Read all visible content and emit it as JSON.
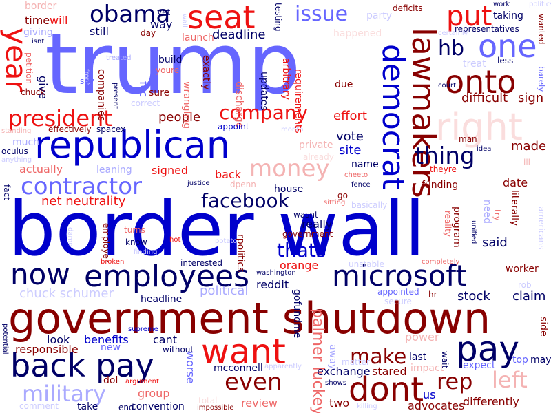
{
  "palette": {
    "navy": "#000066",
    "blue": "#0000cc",
    "periwinkle": "#6666ff",
    "light_blue": "#aaaaff",
    "pale_blue": "#ccccff",
    "maroon": "#880000",
    "red": "#ee1111",
    "salmon": "#ee6666",
    "pink": "#f4b3b3",
    "pale_pink": "#fadddd"
  },
  "words": [
    {
      "text": "border wall",
      "color": "#0000cc"
    },
    {
      "text": "trump",
      "color": "#6666ff"
    },
    {
      "text": "government shutdown",
      "color": "#880000"
    },
    {
      "text": "republican",
      "color": "#0000cc"
    },
    {
      "text": "back pay",
      "color": "#000066"
    },
    {
      "text": "employees",
      "color": "#000066"
    },
    {
      "text": "microsoft",
      "color": "#000066"
    },
    {
      "text": "now",
      "color": "#000066"
    },
    {
      "text": "want",
      "color": "#ee1111"
    },
    {
      "text": "dont",
      "color": "#880000"
    },
    {
      "text": "pay",
      "color": "#000066"
    },
    {
      "text": "seat",
      "color": "#ee1111"
    },
    {
      "text": "democrat",
      "color": "#0000cc"
    },
    {
      "text": "lawmakers",
      "color": "#880000"
    },
    {
      "text": "right",
      "color": "#fadddd"
    },
    {
      "text": "onto",
      "color": "#880000"
    },
    {
      "text": "one",
      "color": "#6666ff"
    },
    {
      "text": "put",
      "color": "#ee1111"
    },
    {
      "text": "hb",
      "color": "#000066"
    },
    {
      "text": "obama",
      "color": "#000066"
    },
    {
      "text": "issue",
      "color": "#6666ff"
    },
    {
      "text": "year",
      "color": "#ee1111"
    },
    {
      "text": "president",
      "color": "#ee1111"
    },
    {
      "text": "company",
      "color": "#ee1111"
    },
    {
      "text": "contractor",
      "color": "#6666ff"
    },
    {
      "text": "money",
      "color": "#f4b3b3"
    },
    {
      "text": "facebook",
      "color": "#000066"
    },
    {
      "text": "thing",
      "color": "#000066"
    },
    {
      "text": "thats",
      "color": "#0000cc"
    },
    {
      "text": "even",
      "color": "#880000"
    },
    {
      "text": "make",
      "color": "#880000"
    },
    {
      "text": "rep",
      "color": "#880000"
    },
    {
      "text": "left",
      "color": "#f4b3b3"
    },
    {
      "text": "military",
      "color": "#aaaaff"
    },
    {
      "text": "net neutrality",
      "color": "#ee1111"
    },
    {
      "text": "palmer luckey",
      "color": "#ee6666"
    },
    {
      "text": "chuck schumer",
      "color": "#ccccff"
    },
    {
      "text": "political",
      "color": "#aaaaff"
    },
    {
      "text": "stock",
      "color": "#000066"
    },
    {
      "text": "claim",
      "color": "#000066"
    },
    {
      "text": "deadline",
      "color": "#000066"
    },
    {
      "text": "effort",
      "color": "#ee1111"
    },
    {
      "text": "difficult",
      "color": "#880000"
    },
    {
      "text": "sign",
      "color": "#880000"
    },
    {
      "text": "made",
      "color": "#880000"
    },
    {
      "text": "date",
      "color": "#880000"
    },
    {
      "text": "said",
      "color": "#000066"
    },
    {
      "text": "vote",
      "color": "#000066"
    },
    {
      "text": "site",
      "color": "#0000cc"
    },
    {
      "text": "name",
      "color": "#000066"
    },
    {
      "text": "people",
      "color": "#880000"
    },
    {
      "text": "signed",
      "color": "#ee1111"
    },
    {
      "text": "back",
      "color": "#ee1111"
    },
    {
      "text": "actually",
      "color": "#ee6666"
    },
    {
      "text": "leaning",
      "color": "#aaaaff"
    },
    {
      "text": "really",
      "color": "#000066"
    },
    {
      "text": "orange",
      "color": "#ee1111"
    },
    {
      "text": "reddit",
      "color": "#000066"
    },
    {
      "text": "benefits",
      "color": "#0000cc"
    },
    {
      "text": "cant",
      "color": "#000066"
    },
    {
      "text": "look",
      "color": "#000066"
    },
    {
      "text": "responsible",
      "color": "#880000"
    },
    {
      "text": "headline",
      "color": "#000066"
    },
    {
      "text": "mcconnell",
      "color": "#000066"
    },
    {
      "text": "exchange",
      "color": "#000066"
    },
    {
      "text": "stared",
      "color": "#880000"
    },
    {
      "text": "review",
      "color": "#ee6666"
    },
    {
      "text": "group",
      "color": "#ee6666"
    },
    {
      "text": "worse",
      "color": "#6666ff"
    },
    {
      "text": "convention",
      "color": "#000066"
    },
    {
      "text": "take",
      "color": "#000066"
    },
    {
      "text": "two",
      "color": "#880000"
    },
    {
      "text": "advocates",
      "color": "#880000"
    },
    {
      "text": "differently",
      "color": "#880000"
    },
    {
      "text": "power",
      "color": "#f4b3b3"
    },
    {
      "text": "last",
      "color": "#000066"
    },
    {
      "text": "us",
      "color": "#0000cc"
    },
    {
      "text": "time",
      "color": "#880000"
    },
    {
      "text": "will",
      "color": "#ee1111"
    },
    {
      "text": "still",
      "color": "#000066"
    },
    {
      "text": "way",
      "color": "#000066"
    },
    {
      "text": "giving",
      "color": "#aaaaff"
    },
    {
      "text": "give",
      "color": "#000066"
    },
    {
      "text": "chuck",
      "color": "#880000"
    },
    {
      "text": "oculus",
      "color": "#000066"
    },
    {
      "text": "fact",
      "color": "#000066"
    },
    {
      "text": "much",
      "color": "#aaaaff"
    },
    {
      "text": "effectively",
      "color": "#880000"
    },
    {
      "text": "spacex",
      "color": "#000066"
    },
    {
      "text": "build",
      "color": "#000066"
    },
    {
      "text": "youre",
      "color": "#ee6666"
    },
    {
      "text": "sure",
      "color": "#880000"
    },
    {
      "text": "fcc",
      "color": "#6666ff"
    },
    {
      "text": "companies",
      "color": "#880000"
    },
    {
      "text": "wrangling",
      "color": "#ee6666"
    },
    {
      "text": "discharge",
      "color": "#ee6666"
    },
    {
      "text": "exactly",
      "color": "#880000"
    },
    {
      "text": "updates",
      "color": "#000066"
    },
    {
      "text": "arbitrary",
      "color": "#ee1111"
    },
    {
      "text": "requirements",
      "color": "#ee1111"
    },
    {
      "text": "due",
      "color": "#880000"
    },
    {
      "text": "taking",
      "color": "#000066"
    },
    {
      "text": "representatives",
      "color": "#000066"
    },
    {
      "text": "less",
      "color": "#000066"
    },
    {
      "text": "wanted",
      "color": "#880000"
    },
    {
      "text": "testing",
      "color": "#000066"
    },
    {
      "text": "deficits",
      "color": "#880000"
    },
    {
      "text": "party",
      "color": "#ccccff"
    },
    {
      "text": "happened",
      "color": "#fadddd"
    },
    {
      "text": "launch",
      "color": "#ee6666"
    },
    {
      "text": "day",
      "color": "#880000"
    },
    {
      "text": "correct",
      "color": "#ccccff"
    },
    {
      "text": "appoint",
      "color": "#0000cc"
    },
    {
      "text": "private",
      "color": "#f4b3b3"
    },
    {
      "text": "already",
      "color": "#fadddd"
    },
    {
      "text": "funding",
      "color": "#880000"
    },
    {
      "text": "theyre",
      "color": "#ee1111"
    },
    {
      "text": "man",
      "color": "#880000"
    },
    {
      "text": "need",
      "color": "#aaaaff"
    },
    {
      "text": "literally",
      "color": "#880000"
    },
    {
      "text": "program",
      "color": "#880000"
    },
    {
      "text": "reality",
      "color": "#ee6666"
    },
    {
      "text": "try",
      "color": "#ee6666"
    },
    {
      "text": "worker",
      "color": "#880000"
    },
    {
      "text": "house",
      "color": "#000066"
    },
    {
      "text": "basically",
      "color": "#ccccff"
    },
    {
      "text": "go",
      "color": "#880000"
    },
    {
      "text": "wasnt",
      "color": "#000066"
    },
    {
      "text": "government",
      "color": "#880000"
    },
    {
      "text": "rpolitics",
      "color": "#880000"
    },
    {
      "text": "know",
      "color": "#000066"
    },
    {
      "text": "turns",
      "color": "#ee6666"
    },
    {
      "text": "employer",
      "color": "#880000"
    },
    {
      "text": "interested",
      "color": "#000066"
    },
    {
      "text": "washington",
      "color": "#000066"
    },
    {
      "text": "unstable",
      "color": "#ccccff"
    },
    {
      "text": "appointed",
      "color": "#6666ff"
    },
    {
      "text": "secure",
      "color": "#ccccff"
    },
    {
      "text": "hr",
      "color": "#880000"
    },
    {
      "text": "gofundme",
      "color": "#000066"
    },
    {
      "text": "away",
      "color": "#aaaaff"
    },
    {
      "text": "matter",
      "color": "#ccccff"
    },
    {
      "text": "impact",
      "color": "#f4b3b3"
    },
    {
      "text": "wait",
      "color": "#000066"
    },
    {
      "text": "expect",
      "color": "#6666ff"
    },
    {
      "text": "top",
      "color": "#6666ff"
    },
    {
      "text": "may",
      "color": "#000066"
    },
    {
      "text": "side",
      "color": "#880000"
    },
    {
      "text": "new",
      "color": "#6666ff"
    },
    {
      "text": "without",
      "color": "#000066"
    },
    {
      "text": "dol",
      "color": "#880000"
    },
    {
      "text": "argument",
      "color": "#ee1111"
    },
    {
      "text": "comment",
      "color": "#ccccff"
    },
    {
      "text": "end",
      "color": "#000066"
    },
    {
      "text": "total",
      "color": "#fadddd"
    },
    {
      "text": "impossible",
      "color": "#880000"
    },
    {
      "text": "shows",
      "color": "#000066"
    },
    {
      "text": "killing",
      "color": "#ccccff"
    },
    {
      "text": "potential",
      "color": "#000066"
    },
    {
      "text": "supreme",
      "color": "#0000cc"
    },
    {
      "text": "border",
      "color": "#f4b3b3"
    },
    {
      "text": "isnt",
      "color": "#000066"
    },
    {
      "text": "petition",
      "color": "#ee6666"
    },
    {
      "text": "yet",
      "color": "#000066"
    },
    {
      "text": "treated",
      "color": "#aaaaff"
    },
    {
      "text": "front",
      "color": "#ccccff"
    },
    {
      "text": "present",
      "color": "#000066"
    },
    {
      "text": "say",
      "color": "#6666ff"
    },
    {
      "text": "standing",
      "color": "#f4b3b3"
    },
    {
      "text": "anything",
      "color": "#ccccff"
    },
    {
      "text": "treat",
      "color": "#ccccff"
    },
    {
      "text": "court",
      "color": "#000066"
    },
    {
      "text": "barely",
      "color": "#6666ff"
    },
    {
      "text": "americans",
      "color": "#ccccff"
    },
    {
      "text": "cheeto",
      "color": "#ee6666"
    },
    {
      "text": "fence",
      "color": "#000066"
    },
    {
      "text": "idea",
      "color": "#000066"
    },
    {
      "text": "ill",
      "color": "#f4b3b3"
    },
    {
      "text": "sitting",
      "color": "#ee6666"
    },
    {
      "text": "justice",
      "color": "#000066"
    },
    {
      "text": "dpenn",
      "color": "#f4b3b3"
    },
    {
      "text": "hot",
      "color": "#ee1111"
    },
    {
      "text": "damn",
      "color": "#ccccff"
    },
    {
      "text": "broken",
      "color": "#ee1111"
    },
    {
      "text": "potato",
      "color": "#ccccff"
    },
    {
      "text": "finding",
      "color": "#ccccff"
    },
    {
      "text": "unified",
      "color": "#000066"
    },
    {
      "text": "completely",
      "color": "#ee6666"
    },
    {
      "text": "rob",
      "color": "#ccccff"
    },
    {
      "text": "apparently",
      "color": "#ccccff"
    },
    {
      "text": "certainly",
      "color": "#ccccff"
    },
    {
      "text": "work",
      "color": "#000066"
    },
    {
      "text": "politics",
      "color": "#ccccff"
    },
    {
      "text": "month",
      "color": "#ccccff"
    },
    {
      "text": "wall",
      "color": "#ccccff"
    }
  ]
}
